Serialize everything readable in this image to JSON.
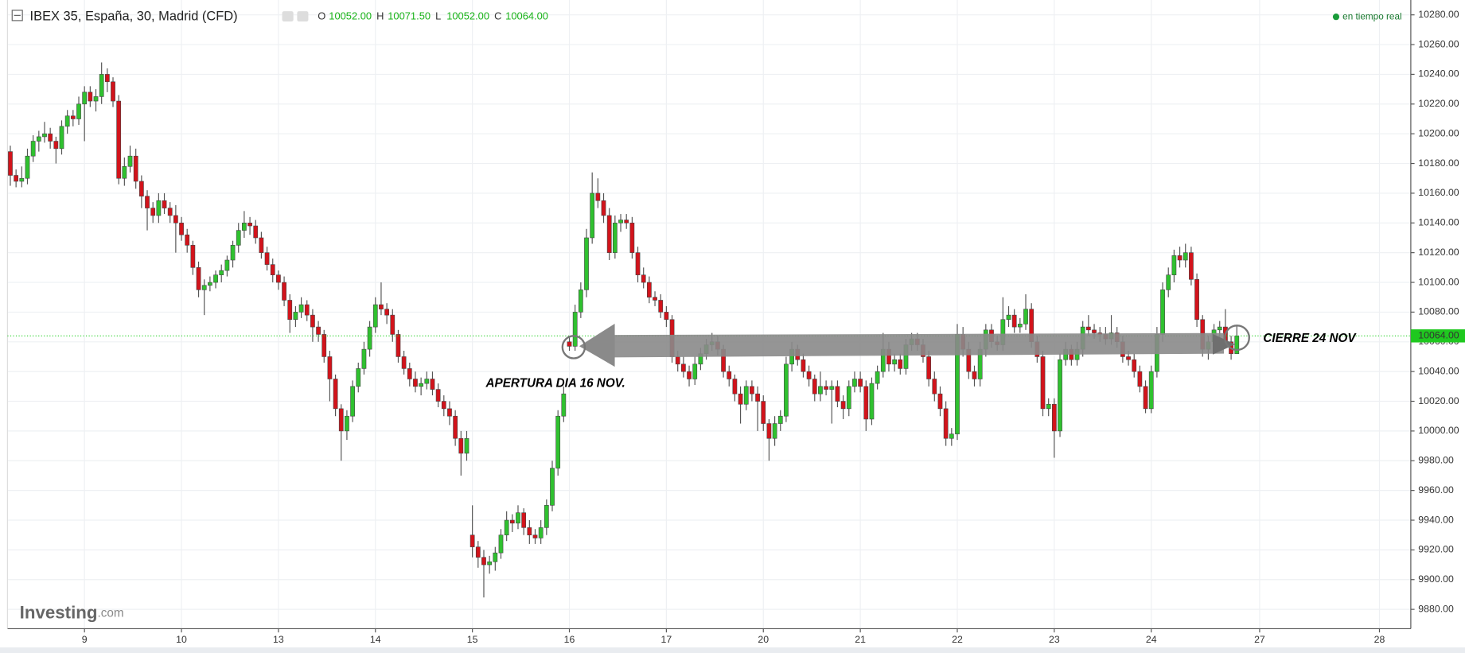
{
  "chart_data": {
    "type": "candlestick",
    "title": "IBEX 35, España, 30, Madrid (CFD)",
    "ohlc_header": [
      {
        "key": "O",
        "price": {
          "value": 10052,
          "label": "10052.00"
        }
      },
      {
        "key": "H",
        "price": {
          "value": 10071.5,
          "label": "10071.50"
        }
      },
      {
        "key": "L",
        "price": {
          "value": 10052,
          "label": "10052.00"
        }
      },
      {
        "key": "C",
        "price": {
          "value": 10064,
          "label": "10064.00"
        }
      }
    ],
    "status": "en tiempo real",
    "logo": [
      "Investing",
      ".com"
    ],
    "annotations": [
      "APERTURA DIA 16 NOV.",
      "CIERRE 24 NOV"
    ],
    "up_color": "#2fc12f",
    "down_color": "#d2131b",
    "grid": true,
    "last_price": {
      "value": 10064,
      "label": "10064.00"
    },
    "ylim": [
      9867,
      10290
    ],
    "yticks": [
      {
        "value": 9880,
        "label": "9880.00"
      },
      {
        "value": 9900,
        "label": "9900.00"
      },
      {
        "value": 9920,
        "label": "9920.00"
      },
      {
        "value": 9940,
        "label": "9940.00"
      },
      {
        "value": 9960,
        "label": "9960.00"
      },
      {
        "value": 9980,
        "label": "9980.00"
      },
      {
        "value": 10000,
        "label": "10000.00"
      },
      {
        "value": 10020,
        "label": "10020.00"
      },
      {
        "value": 10040,
        "label": "10040.00"
      },
      {
        "value": 10060,
        "label": "10060.00"
      },
      {
        "value": 10080,
        "label": "10080.00"
      },
      {
        "value": 10100,
        "label": "10100.00"
      },
      {
        "value": 10120,
        "label": "10120.00"
      },
      {
        "value": 10140,
        "label": "10140.00"
      },
      {
        "value": 10160,
        "label": "10160.00"
      },
      {
        "value": 10180,
        "label": "10180.00"
      },
      {
        "value": 10200,
        "label": "10200.00"
      },
      {
        "value": 10220,
        "label": "10220.00"
      },
      {
        "value": 10240,
        "label": "10240.00"
      },
      {
        "value": 10260,
        "label": "10260.00"
      },
      {
        "value": 10280,
        "label": "10280.00"
      }
    ],
    "categories": [
      null,
      null,
      null,
      null,
      null,
      null,
      null,
      null,
      null,
      null,
      null,
      null,
      null,
      "9",
      null,
      null,
      null,
      null,
      null,
      null,
      null,
      null,
      null,
      null,
      null,
      null,
      null,
      null,
      null,
      null,
      "10",
      null,
      null,
      null,
      null,
      null,
      null,
      null,
      null,
      null,
      null,
      null,
      null,
      null,
      null,
      null,
      null,
      "13",
      null,
      null,
      null,
      null,
      null,
      null,
      null,
      null,
      null,
      null,
      null,
      null,
      null,
      null,
      null,
      null,
      "14",
      null,
      null,
      null,
      null,
      null,
      null,
      null,
      null,
      null,
      null,
      null,
      null,
      null,
      null,
      null,
      null,
      "15",
      null,
      null,
      null,
      null,
      null,
      null,
      null,
      null,
      null,
      null,
      null,
      null,
      null,
      null,
      null,
      null,
      "16",
      null,
      null,
      null,
      null,
      null,
      null,
      null,
      null,
      null,
      null,
      null,
      null,
      null,
      null,
      null,
      null,
      "17",
      null,
      null,
      null,
      null,
      null,
      null,
      null,
      null,
      null,
      null,
      null,
      null,
      null,
      null,
      null,
      null,
      "20",
      null,
      null,
      null,
      null,
      null,
      null,
      null,
      null,
      null,
      null,
      null,
      null,
      null,
      null,
      null,
      null,
      "21",
      null,
      null,
      null,
      null,
      null,
      null,
      null,
      null,
      null,
      null,
      null,
      null,
      null,
      null,
      null,
      null,
      "22",
      null,
      null,
      null,
      null,
      null,
      null,
      null,
      null,
      null,
      null,
      null,
      null,
      null,
      null,
      null,
      null,
      "23",
      null,
      null,
      null,
      null,
      null,
      null,
      null,
      null,
      null,
      null,
      null,
      null,
      null,
      null,
      null,
      null,
      "24",
      null,
      null,
      null,
      null,
      null,
      null,
      null,
      null,
      null,
      null,
      null,
      null,
      null,
      null,
      null,
      null,
      null,
      null,
      "27",
      null,
      null,
      null,
      null,
      null,
      null,
      null,
      null,
      null,
      null,
      null,
      null,
      null,
      null,
      null,
      null,
      null,
      null,
      null,
      null,
      "28",
      null,
      null,
      null,
      null,
      null
    ],
    "open": [
      10188,
      10172,
      10168,
      10170,
      10185,
      10195,
      10198,
      10200,
      10195,
      10190,
      10205,
      10212,
      10210,
      10220,
      10228,
      10222,
      10225,
      10240,
      10235,
      10222,
      10170,
      10178,
      10185,
      10168,
      10158,
      10150,
      10145,
      10155,
      10150,
      10145,
      10140,
      10132,
      10125,
      10110,
      10095,
      10098,
      10100,
      10105,
      10108,
      10115,
      10125,
      10135,
      10140,
      10138,
      10130,
      10120,
      10112,
      10105,
      10100,
      10088,
      10075,
      10080,
      10085,
      10078,
      10070,
      10065,
      10050,
      10035,
      10015,
      10000,
      10010,
      10030,
      10042,
      10055,
      10070,
      10085,
      10082,
      10078,
      10065,
      10050,
      10042,
      10035,
      10030,
      10032,
      10035,
      10028,
      10020,
      10015,
      10010,
      9995,
      9985,
      9930,
      9922,
      9915,
      9910,
      9912,
      9918,
      9930,
      9940,
      9938,
      9945,
      9935,
      9930,
      9928,
      9935,
      9950,
      9975,
      10010,
      10060,
      10057,
      10080,
      10095,
      10130,
      10160,
      10155,
      10145,
      10120,
      10140,
      10142,
      10140,
      10120,
      10105,
      10100,
      10090,
      10088,
      10080,
      10075,
      10050,
      10045,
      10040,
      10035,
      10045,
      10052,
      10058,
      10060,
      10055,
      10040,
      10035,
      10025,
      10018,
      10030,
      10025,
      10020,
      10005,
      9995,
      10005,
      10010,
      10045,
      10055,
      10048,
      10040,
      10035,
      10025,
      10030,
      10028,
      10030,
      10020,
      10015,
      10030,
      10035,
      10030,
      10008,
      10032,
      10040,
      10055,
      10045,
      10048,
      10042,
      10058,
      10062,
      10058,
      10050,
      10035,
      10025,
      10015,
      9995,
      9998,
      10065,
      10055,
      10040,
      10035,
      10055,
      10068,
      10060,
      10058,
      10075,
      10078,
      10070,
      10072,
      10082,
      10060,
      10050,
      10015,
      10018,
      10000,
      10048,
      10055,
      10048,
      10055,
      10070,
      10068,
      10066,
      10065,
      10062,
      10066,
      10060,
      10050,
      10048,
      10040,
      10030,
      10015,
      10040,
      10065,
      10095,
      10105,
      10118,
      10115,
      10120,
      10102,
      10075,
      10055,
      10060,
      10068,
      10070,
      10060,
      10052,
      null,
      null,
      null,
      null,
      null,
      null,
      null,
      null,
      null,
      null,
      null,
      null,
      null,
      null,
      null,
      null,
      null,
      null,
      null,
      null,
      null,
      null,
      null,
      null,
      null,
      null,
      null,
      null,
      null,
      null
    ],
    "high": [
      10192,
      10176,
      10178,
      10190,
      10199,
      10202,
      10208,
      10204,
      10198,
      10209,
      10216,
      10216,
      10225,
      10232,
      10232,
      10230,
      10248,
      10244,
      10238,
      10226,
      10184,
      10192,
      10190,
      10172,
      10162,
      10154,
      10160,
      10160,
      10154,
      10152,
      10144,
      10136,
      10128,
      10114,
      10102,
      10104,
      10108,
      10112,
      10118,
      10128,
      10140,
      10148,
      10144,
      10142,
      10134,
      10124,
      10116,
      10108,
      10104,
      10092,
      10084,
      10090,
      10088,
      10082,
      10074,
      10068,
      10054,
      10038,
      10018,
      10014,
      10034,
      10046,
      10060,
      10074,
      10090,
      10100,
      10086,
      10082,
      10068,
      10054,
      10046,
      10040,
      10036,
      10040,
      10040,
      10032,
      10024,
      10020,
      10014,
      10000,
      10000,
      9950,
      9926,
      9920,
      9916,
      9922,
      9934,
      9946,
      9944,
      9950,
      9948,
      9940,
      9934,
      9940,
      9954,
      9980,
      10014,
      10030,
      10064,
      10085,
      10100,
      10136,
      10174,
      10170,
      10160,
      10150,
      10145,
      10146,
      10146,
      10144,
      10124,
      10110,
      10104,
      10094,
      10092,
      10084,
      10078,
      10054,
      10050,
      10044,
      10050,
      10056,
      10062,
      10066,
      10064,
      10058,
      10044,
      10038,
      10030,
      10034,
      10034,
      10030,
      10024,
      10008,
      10010,
      10014,
      10050,
      10060,
      10058,
      10052,
      10044,
      10038,
      10040,
      10034,
      10034,
      10034,
      10024,
      10034,
      10040,
      10040,
      10034,
      10036,
      10044,
      10066,
      10060,
      10052,
      10052,
      10062,
      10066,
      10066,
      10062,
      10054,
      10040,
      10030,
      10020,
      10002,
      10072,
      10070,
      10060,
      10044,
      10060,
      10072,
      10072,
      10064,
      10090,
      10084,
      10082,
      10076,
      10092,
      10086,
      10064,
      10054,
      10022,
      10022,
      10052,
      10060,
      10058,
      10060,
      10074,
      10078,
      10072,
      10070,
      10070,
      10078,
      10070,
      10064,
      10054,
      10052,
      10044,
      10034,
      10044,
      10070,
      10100,
      10110,
      10122,
      10124,
      10126,
      10124,
      10106,
      10078,
      10064,
      10072,
      10074,
      10082,
      10064,
      10071.5,
      null,
      null,
      null,
      null,
      null,
      null,
      null,
      null,
      null,
      null,
      null,
      null,
      null,
      null,
      null,
      null,
      null,
      null,
      null,
      null,
      null,
      null,
      null,
      null,
      null,
      null,
      null,
      null,
      null,
      null
    ],
    "low": [
      10165,
      10164,
      10164,
      10166,
      10181,
      10188,
      10194,
      10190,
      10180,
      10186,
      10200,
      10205,
      10206,
      10195,
      10218,
      10215,
      10220,
      10228,
      10218,
      10166,
      10165,
      10174,
      10163,
      10150,
      10135,
      10140,
      10140,
      10146,
      10140,
      10120,
      10128,
      10120,
      10105,
      10090,
      10078,
      10094,
      10096,
      10100,
      10104,
      10110,
      10120,
      10130,
      10132,
      10126,
      10116,
      10108,
      10100,
      10095,
      10084,
      10066,
      10070,
      10076,
      10074,
      10060,
      10060,
      10046,
      10020,
      10010,
      9980,
      9994,
      10006,
      10026,
      10038,
      10050,
      10066,
      10078,
      10072,
      10060,
      10046,
      10038,
      10030,
      10026,
      10024,
      10028,
      10024,
      10016,
      10010,
      10004,
      9990,
      9970,
      9980,
      9915,
      9908,
      9888,
      9904,
      9906,
      9914,
      9926,
      9932,
      9934,
      9930,
      9924,
      9924,
      9924,
      9930,
      9946,
      9970,
      10006,
      10054,
      10054,
      10076,
      10090,
      10126,
      10150,
      10140,
      10115,
      10116,
      10134,
      10136,
      10116,
      10100,
      10096,
      10086,
      10084,
      10076,
      10070,
      10046,
      10040,
      10036,
      10030,
      10031,
      10041,
      10048,
      10054,
      10051,
      10036,
      10030,
      10020,
      10005,
      10014,
      10020,
      10000,
      10000,
      9980,
      9990,
      10000,
      10006,
      10040,
      10044,
      10036,
      10030,
      10020,
      10020,
      10024,
      10005,
      10016,
      10008,
      10010,
      10026,
      10026,
      10000,
      10004,
      10028,
      10036,
      10040,
      10040,
      10038,
      10038,
      10054,
      10054,
      10046,
      10030,
      10020,
      10010,
      9990,
      9990,
      9994,
      10050,
      10035,
      10030,
      10030,
      10050,
      10056,
      10054,
      10054,
      10070,
      10066,
      10066,
      10068,
      10056,
      10046,
      10010,
      10010,
      9982,
      9996,
      10044,
      10044,
      10044,
      10050,
      10064,
      10062,
      10060,
      10058,
      10058,
      10056,
      10046,
      10044,
      10036,
      10026,
      10012,
      10012,
      10036,
      10060,
      10090,
      10100,
      10110,
      10110,
      10098,
      10070,
      10050,
      10048,
      10054,
      10062,
      10056,
      10048,
      10052,
      null,
      null,
      null,
      null,
      null,
      null,
      null,
      null,
      null,
      null,
      null,
      null,
      null,
      null,
      null,
      null,
      null,
      null,
      null,
      null,
      null,
      null,
      null,
      null,
      null,
      null,
      null,
      null,
      null,
      null
    ],
    "close": [
      10172,
      10168,
      10170,
      10185,
      10195,
      10198,
      10200,
      10195,
      10190,
      10205,
      10212,
      10210,
      10220,
      10228,
      10222,
      10225,
      10240,
      10235,
      10222,
      10170,
      10178,
      10185,
      10168,
      10158,
      10150,
      10145,
      10155,
      10150,
      10145,
      10140,
      10132,
      10125,
      10110,
      10095,
      10098,
      10100,
      10105,
      10108,
      10115,
      10125,
      10135,
      10140,
      10138,
      10130,
      10120,
      10112,
      10105,
      10100,
      10088,
      10075,
      10080,
      10085,
      10078,
      10070,
      10065,
      10050,
      10035,
      10015,
      10000,
      10010,
      10030,
      10042,
      10055,
      10070,
      10085,
      10082,
      10078,
      10065,
      10050,
      10042,
      10035,
      10030,
      10032,
      10035,
      10028,
      10020,
      10015,
      10010,
      9995,
      9985,
      9995,
      9922,
      9915,
      9910,
      9912,
      9918,
      9930,
      9940,
      9938,
      9945,
      9935,
      9930,
      9928,
      9935,
      9950,
      9975,
      10010,
      10025,
      10057,
      10080,
      10095,
      10130,
      10160,
      10155,
      10145,
      10120,
      10140,
      10142,
      10140,
      10120,
      10105,
      10100,
      10090,
      10088,
      10080,
      10075,
      10050,
      10045,
      10040,
      10035,
      10045,
      10052,
      10058,
      10060,
      10055,
      10040,
      10035,
      10025,
      10018,
      10030,
      10025,
      10020,
      10005,
      9995,
      10005,
      10010,
      10045,
      10055,
      10048,
      10040,
      10035,
      10025,
      10030,
      10028,
      10030,
      10020,
      10015,
      10030,
      10035,
      10030,
      10008,
      10032,
      10040,
      10055,
      10045,
      10048,
      10042,
      10058,
      10062,
      10058,
      10050,
      10035,
      10025,
      10015,
      9995,
      9998,
      10065,
      10055,
      10040,
      10035,
      10055,
      10068,
      10060,
      10058,
      10075,
      10078,
      10070,
      10072,
      10082,
      10060,
      10050,
      10015,
      10018,
      10000,
      10048,
      10055,
      10048,
      10055,
      10070,
      10068,
      10066,
      10065,
      10062,
      10066,
      10060,
      10050,
      10048,
      10040,
      10030,
      10015,
      10040,
      10065,
      10095,
      10105,
      10118,
      10115,
      10120,
      10102,
      10075,
      10055,
      10060,
      10068,
      10070,
      10060,
      10052,
      10064,
      null,
      null,
      null,
      null,
      null,
      null,
      null,
      null,
      null,
      null,
      null,
      null,
      null,
      null,
      null,
      null,
      null,
      null,
      null,
      null,
      null,
      null,
      null,
      null,
      null,
      null,
      null,
      null,
      null,
      null
    ]
  }
}
